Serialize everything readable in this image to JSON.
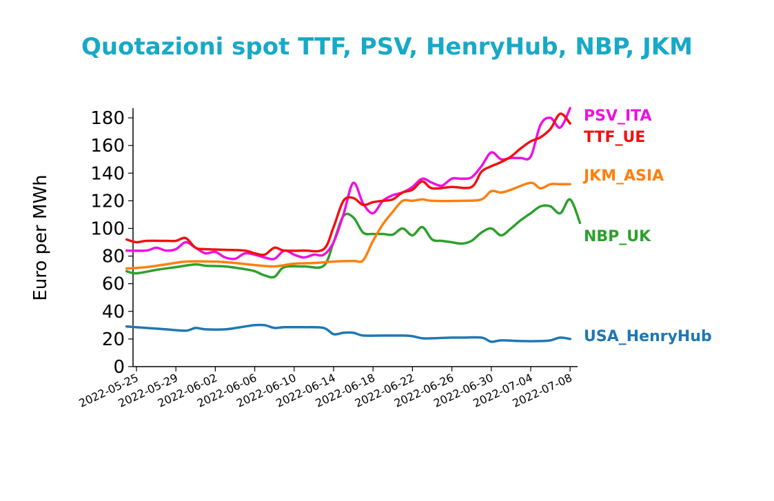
{
  "title": "Quotazioni spot TTF, PSV, HenryHub, NBP, JKM",
  "chart_data": {
    "type": "line",
    "title": "Quotazioni spot TTF, PSV, HenryHub, NBP, JKM",
    "xlabel": "",
    "ylabel": "Euro per MWh",
    "ylim": [
      0,
      187
    ],
    "xlim": [
      "2022-05-24",
      "2022-07-08"
    ],
    "grid": false,
    "legend": "right-end labels",
    "yticks": [
      0,
      20,
      40,
      60,
      80,
      100,
      120,
      140,
      160,
      180
    ],
    "xticks": [
      "2022-05-25",
      "2022-05-29",
      "2022-06-02",
      "2022-06-06",
      "2022-06-10",
      "2022-06-14",
      "2022-06-18",
      "2022-06-22",
      "2022-06-26",
      "2022-06-30",
      "2022-07-04",
      "2022-07-08"
    ],
    "series": [
      {
        "name": "PSV_ITA",
        "color": "#ee10e0",
        "points": [
          [
            "2022-05-24",
            84
          ],
          [
            "2022-05-26",
            84
          ],
          [
            "2022-05-27",
            86
          ],
          [
            "2022-05-28",
            84
          ],
          [
            "2022-05-29",
            85
          ],
          [
            "2022-05-30",
            90
          ],
          [
            "2022-05-31",
            86
          ],
          [
            "2022-06-01",
            82
          ],
          [
            "2022-06-02",
            83
          ],
          [
            "2022-06-03",
            79
          ],
          [
            "2022-06-04",
            78
          ],
          [
            "2022-06-05",
            82
          ],
          [
            "2022-06-06",
            81
          ],
          [
            "2022-06-07",
            79
          ],
          [
            "2022-06-08",
            78
          ],
          [
            "2022-06-09",
            84
          ],
          [
            "2022-06-10",
            81
          ],
          [
            "2022-06-11",
            79
          ],
          [
            "2022-06-12",
            81
          ],
          [
            "2022-06-13",
            81
          ],
          [
            "2022-06-14",
            90
          ],
          [
            "2022-06-15",
            110
          ],
          [
            "2022-06-16",
            133
          ],
          [
            "2022-06-17",
            118
          ],
          [
            "2022-06-18",
            111
          ],
          [
            "2022-06-19",
            120
          ],
          [
            "2022-06-20",
            124
          ],
          [
            "2022-06-21",
            126
          ],
          [
            "2022-06-22",
            130
          ],
          [
            "2022-06-23",
            136
          ],
          [
            "2022-06-24",
            133
          ],
          [
            "2022-06-25",
            131
          ],
          [
            "2022-06-26",
            136
          ],
          [
            "2022-06-27",
            136
          ],
          [
            "2022-06-28",
            137
          ],
          [
            "2022-06-29",
            145
          ],
          [
            "2022-06-30",
            155
          ],
          [
            "2022-07-01",
            150
          ],
          [
            "2022-07-02",
            151
          ],
          [
            "2022-07-03",
            151
          ],
          [
            "2022-07-04",
            152
          ],
          [
            "2022-07-05",
            175
          ],
          [
            "2022-07-06",
            180
          ],
          [
            "2022-07-07",
            173
          ],
          [
            "2022-07-08",
            187
          ]
        ]
      },
      {
        "name": "TTF_UE",
        "color": "#f01010",
        "points": [
          [
            "2022-05-24",
            92
          ],
          [
            "2022-05-25",
            90
          ],
          [
            "2022-05-26",
            91
          ],
          [
            "2022-05-28",
            91
          ],
          [
            "2022-05-29",
            91
          ],
          [
            "2022-05-30",
            93
          ],
          [
            "2022-05-31",
            86
          ],
          [
            "2022-06-01",
            85
          ],
          [
            "2022-06-03",
            84.5
          ],
          [
            "2022-06-05",
            84
          ],
          [
            "2022-06-06",
            82
          ],
          [
            "2022-06-07",
            81
          ],
          [
            "2022-06-08",
            86
          ],
          [
            "2022-06-09",
            84
          ],
          [
            "2022-06-11",
            84
          ],
          [
            "2022-06-13",
            85
          ],
          [
            "2022-06-14",
            101
          ],
          [
            "2022-06-15",
            120
          ],
          [
            "2022-06-16",
            122
          ],
          [
            "2022-06-17",
            117
          ],
          [
            "2022-06-18",
            119
          ],
          [
            "2022-06-19",
            120
          ],
          [
            "2022-06-20",
            121
          ],
          [
            "2022-06-21",
            126
          ],
          [
            "2022-06-22",
            128
          ],
          [
            "2022-06-23",
            134
          ],
          [
            "2022-06-24",
            129
          ],
          [
            "2022-06-26",
            130
          ],
          [
            "2022-06-28",
            130
          ],
          [
            "2022-06-29",
            141
          ],
          [
            "2022-06-30",
            145
          ],
          [
            "2022-07-01",
            148
          ],
          [
            "2022-07-02",
            152
          ],
          [
            "2022-07-03",
            158
          ],
          [
            "2022-07-04",
            163
          ],
          [
            "2022-07-05",
            166
          ],
          [
            "2022-07-06",
            172
          ],
          [
            "2022-07-07",
            183
          ],
          [
            "2022-07-08",
            176
          ]
        ]
      },
      {
        "name": "JKM_ASIA",
        "color": "#ff7f0e",
        "points": [
          [
            "2022-05-24",
            71
          ],
          [
            "2022-05-26",
            72
          ],
          [
            "2022-05-28",
            74
          ],
          [
            "2022-05-30",
            76
          ],
          [
            "2022-06-02",
            76
          ],
          [
            "2022-06-04",
            75
          ],
          [
            "2022-06-06",
            73.5
          ],
          [
            "2022-06-08",
            72.5
          ],
          [
            "2022-06-10",
            74.5
          ],
          [
            "2022-06-12",
            75
          ],
          [
            "2022-06-14",
            76
          ],
          [
            "2022-06-16",
            76.5
          ],
          [
            "2022-06-17",
            77
          ],
          [
            "2022-06-18",
            91
          ],
          [
            "2022-06-19",
            103
          ],
          [
            "2022-06-20",
            112
          ],
          [
            "2022-06-21",
            120
          ],
          [
            "2022-06-22",
            120
          ],
          [
            "2022-06-23",
            121
          ],
          [
            "2022-06-24",
            120
          ],
          [
            "2022-06-27",
            120
          ],
          [
            "2022-06-29",
            121
          ],
          [
            "2022-06-30",
            127
          ],
          [
            "2022-07-01",
            126
          ],
          [
            "2022-07-02",
            128
          ],
          [
            "2022-07-04",
            133
          ],
          [
            "2022-07-05",
            129
          ],
          [
            "2022-07-06",
            132
          ],
          [
            "2022-07-07",
            132
          ],
          [
            "2022-07-08",
            132
          ]
        ]
      },
      {
        "name": "NBP_UK",
        "color": "#2ca02c",
        "points": [
          [
            "2022-05-24",
            69
          ],
          [
            "2022-05-25",
            67.5
          ],
          [
            "2022-05-27",
            70
          ],
          [
            "2022-05-29",
            72
          ],
          [
            "2022-05-31",
            74
          ],
          [
            "2022-06-01",
            73
          ],
          [
            "2022-06-03",
            72.5
          ],
          [
            "2022-06-05",
            70.5
          ],
          [
            "2022-06-06",
            69
          ],
          [
            "2022-06-07",
            66
          ],
          [
            "2022-06-08",
            65
          ],
          [
            "2022-06-09",
            72
          ],
          [
            "2022-06-11",
            72.5
          ],
          [
            "2022-06-13",
            73
          ],
          [
            "2022-06-14",
            90
          ],
          [
            "2022-06-15",
            109
          ],
          [
            "2022-06-16",
            108
          ],
          [
            "2022-06-17",
            97
          ],
          [
            "2022-06-18",
            96
          ],
          [
            "2022-06-19",
            96
          ],
          [
            "2022-06-20",
            95.5
          ],
          [
            "2022-06-21",
            100
          ],
          [
            "2022-06-22",
            95
          ],
          [
            "2022-06-23",
            101
          ],
          [
            "2022-06-24",
            92
          ],
          [
            "2022-06-25",
            91
          ],
          [
            "2022-06-26",
            90
          ],
          [
            "2022-06-27",
            89
          ],
          [
            "2022-06-28",
            91
          ],
          [
            "2022-06-29",
            97
          ],
          [
            "2022-06-30",
            100
          ],
          [
            "2022-07-01",
            95
          ],
          [
            "2022-07-02",
            100
          ],
          [
            "2022-07-03",
            106
          ],
          [
            "2022-07-04",
            111
          ],
          [
            "2022-07-05",
            116
          ],
          [
            "2022-07-06",
            116
          ],
          [
            "2022-07-07",
            111
          ],
          [
            "2022-07-08",
            121
          ],
          [
            "2022-07-09",
            104
          ]
        ]
      },
      {
        "name": "USA_HenryHub",
        "color": "#1f77b4",
        "points": [
          [
            "2022-05-24",
            29
          ],
          [
            "2022-05-26",
            28
          ],
          [
            "2022-05-28",
            27
          ],
          [
            "2022-05-30",
            26
          ],
          [
            "2022-05-31",
            28
          ],
          [
            "2022-06-01",
            27
          ],
          [
            "2022-06-03",
            27
          ],
          [
            "2022-06-05",
            29
          ],
          [
            "2022-06-06",
            30
          ],
          [
            "2022-06-07",
            30
          ],
          [
            "2022-06-08",
            28
          ],
          [
            "2022-06-09",
            28.5
          ],
          [
            "2022-06-11",
            28.5
          ],
          [
            "2022-06-13",
            28
          ],
          [
            "2022-06-14",
            23.5
          ],
          [
            "2022-06-15",
            24.5
          ],
          [
            "2022-06-16",
            24.5
          ],
          [
            "2022-06-17",
            22.5
          ],
          [
            "2022-06-19",
            22.5
          ],
          [
            "2022-06-21",
            22.5
          ],
          [
            "2022-06-22",
            22
          ],
          [
            "2022-06-23",
            20.5
          ],
          [
            "2022-06-24",
            20.5
          ],
          [
            "2022-06-26",
            21
          ],
          [
            "2022-06-27",
            21
          ],
          [
            "2022-06-29",
            21
          ],
          [
            "2022-06-30",
            18
          ],
          [
            "2022-07-01",
            19
          ],
          [
            "2022-07-03",
            18.5
          ],
          [
            "2022-07-05",
            18.5
          ],
          [
            "2022-07-06",
            19
          ],
          [
            "2022-07-07",
            21
          ],
          [
            "2022-07-08",
            20
          ]
        ]
      }
    ]
  }
}
